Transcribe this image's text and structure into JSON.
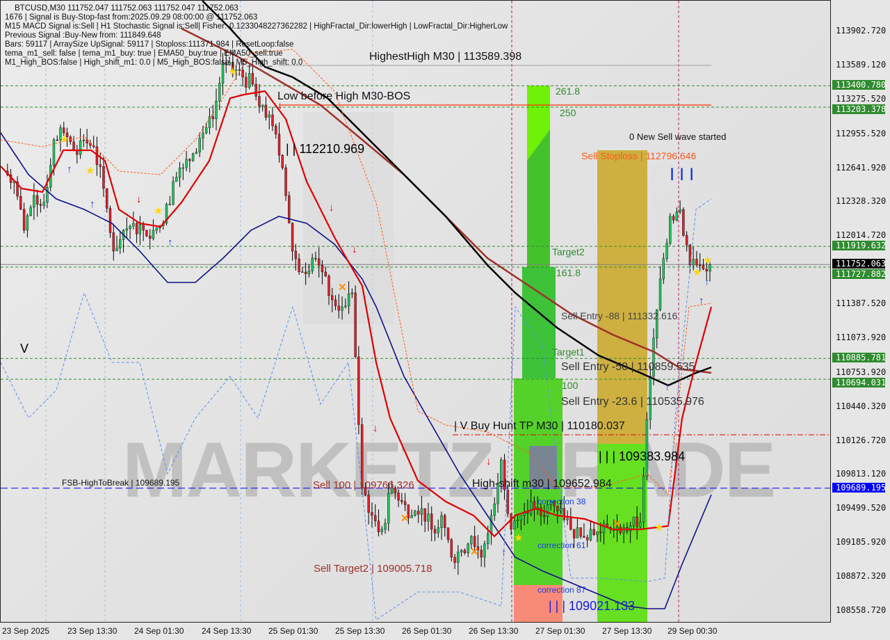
{
  "header": {
    "symbol_line": "BTCUSD,M30  111752.047 111752.063 111752.047 111752.063",
    "lines": [
      "1676 | Signal is Buy-Stop-fast from:2025.09.29 08:00:00 @ 111752.063",
      "M15 MACD Signal is:Sell | H1 Stochastic Signal is:Sell| Fisher:-0.1233048227362282 | HighFractal_Dir:lowerHigh | LowFractal_Dir:HigherLow",
      "Previous Signal :Buy-New from: 111849.648",
      "Bars: 59117 | ArraySize UpSignal: 59117 | Stoploss:111371.984 | ResetLoop:false",
      "tema_m1_sell: false | tema_m1_buy: true | EMA50_buy:true | EMA50_sell:true",
      "M1_High_BOS:false | High_shift_m1: 0.0 | M5_High_BOS:false | M5_High_shift: 0.0"
    ]
  },
  "watermark": "MARKETZ TRADE",
  "annotations": {
    "highest_high": "HighestHigh   M30 | 113589.398",
    "low_before_high": "Low before High   M30-BOS",
    "level_112210": "| | 112210.969",
    "fib_261": "261.8",
    "fib_250": "250",
    "new_sell_wave": "0 New Sell wave started",
    "sell_stoploss": "Sell Stoploss | 112796.646",
    "blue_bars": "| | |",
    "target2": "Target2",
    "fib_161": "161.8",
    "sell_entry_88": "Sell Entry -88 | 111332.616",
    "target1": "Target1",
    "sell_entry_50": "Sell Entry -50 | 110859.535",
    "fib_100": "100",
    "sell_entry_23": "Sell Entry -23.6 | 110535.976",
    "buy_hunt_tp": "| V Buy Hunt TP M30 | 110180.037",
    "level_109383": "| | | 109383.984",
    "high_shift": "High-shift m30 | 109652.984",
    "sell_100": "Sell 100 | 109766.326",
    "fsb_high": "FSB-HighToBreak | 109689.195",
    "correction_38": "correction 38",
    "correction_61": "correction 61",
    "correction_87": "correction 87",
    "level_109021": "| | | 109021.133",
    "sell_target2": "Sell Target2 | 109005.718",
    "v_mark": "V"
  },
  "price_axis": {
    "ticks": [
      "113902.720",
      "113589.120",
      "113275.520",
      "112955.520",
      "112641.920",
      "112328.320",
      "112014.720",
      "111387.520",
      "111073.920",
      "110753.920",
      "110440.320",
      "110126.720",
      "109813.120",
      "109499.520",
      "109185.920",
      "108872.320",
      "108558.720"
    ],
    "badges": [
      {
        "value": "113400.780",
        "color": "#2e8b2e"
      },
      {
        "value": "113203.378",
        "color": "#2e8b2e"
      },
      {
        "value": "111919.632",
        "color": "#2e8b2e"
      },
      {
        "value": "111752.063",
        "color": "#000000"
      },
      {
        "value": "111727.882",
        "color": "#2e8b2e"
      },
      {
        "value": "110885.781",
        "color": "#2e8b2e"
      },
      {
        "value": "110694.031",
        "color": "#2e8b2e"
      },
      {
        "value": "109689.195",
        "color": "#0000ff"
      }
    ]
  },
  "time_axis": [
    "23 Sep 2025",
    "23 Sep 13:30",
    "24 Sep 01:30",
    "24 Sep 13:30",
    "25 Sep 01:30",
    "25 Sep 13:30",
    "26 Sep 01:30",
    "26 Sep 13:30",
    "27 Sep 01:30",
    "27 Sep 13:30",
    "29 Sep 00:30"
  ],
  "colors": {
    "up": "#22c55e",
    "down": "#e0202a",
    "ema_red": "#e00000",
    "ma_black": "#000000",
    "ma_brown": "#a0302a",
    "ma_navy": "#10108a",
    "level_green": "#2e8b2e",
    "level_blue": "#0000ff"
  },
  "chart_data": {
    "type": "candlestick",
    "symbol": "BTCUSD",
    "timeframe": "M30",
    "ylim": [
      108400,
      114180
    ],
    "grid": false,
    "closes": [
      112614,
      112517,
      112068,
      112389,
      112325,
      112902,
      112966,
      112806,
      112902,
      112838,
      112453,
      111876,
      112068,
      112132,
      112068,
      112068,
      112132,
      112517,
      112645,
      112774,
      112966,
      113095,
      113608,
      113544,
      113480,
      113415,
      113223,
      113030,
      112645,
      111876,
      111683,
      111811,
      111683,
      111427,
      111362,
      111491,
      109694,
      109438,
      109310,
      109694,
      109566,
      109438,
      109502,
      109310,
      109438,
      109053,
      109117,
      109245,
      109053,
      109438,
      109951,
      109310,
      109438,
      109566,
      109438,
      109566,
      109502,
      109310,
      109245,
      109310,
      109278,
      109310,
      109278,
      109342,
      109374,
      110721,
      111619,
      112197,
      112260,
      111747,
      111747,
      111752
    ],
    "levels": [
      {
        "price": 113400.78,
        "style": "dashed",
        "color": "#2e8b2e"
      },
      {
        "price": 113203.378,
        "style": "dashed",
        "color": "#2e8b2e"
      },
      {
        "price": 111919.632,
        "style": "dashed",
        "color": "#2e8b2e"
      },
      {
        "price": 111752.063,
        "style": "solid",
        "color": "#808080"
      },
      {
        "price": 111727.882,
        "style": "dashed",
        "color": "#2e8b2e"
      },
      {
        "price": 110885.781,
        "style": "dashed",
        "color": "#2e8b2e"
      },
      {
        "price": 110694.031,
        "style": "dashed",
        "color": "#2e8b2e"
      },
      {
        "price": 109689.195,
        "style": "dashed",
        "color": "#0000ff"
      }
    ]
  }
}
